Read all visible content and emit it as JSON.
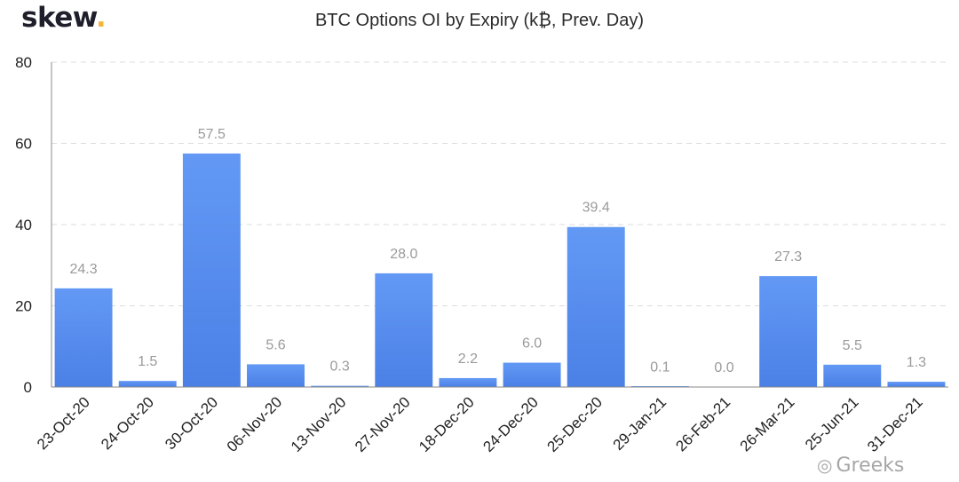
{
  "logo": {
    "text": "skew",
    "dot": "."
  },
  "watermark": {
    "icon": "wechat-icon",
    "text": "Greeks"
  },
  "colors": {
    "bar_top": "#6399f5",
    "bar_bottom": "#4b80e6",
    "grid": "#dcdcdc",
    "axis": "#888888",
    "data_label": "#9a9a9a",
    "logo_dot": "#f4b53a"
  },
  "chart_data": {
    "type": "bar",
    "title": "BTC Options OI by Expiry (k₿, Prev. Day)",
    "xlabel": "",
    "ylabel": "",
    "ylim": [
      0,
      80
    ],
    "yticks": [
      0,
      20,
      40,
      60,
      80
    ],
    "grid": true,
    "categories": [
      "23-Oct-20",
      "24-Oct-20",
      "30-Oct-20",
      "06-Nov-20",
      "13-Nov-20",
      "27-Nov-20",
      "18-Dec-20",
      "24-Dec-20",
      "25-Dec-20",
      "29-Jan-21",
      "26-Feb-21",
      "26-Mar-21",
      "25-Jun-21",
      "31-Dec-21"
    ],
    "values": [
      24.3,
      1.5,
      57.5,
      5.6,
      0.3,
      28.0,
      2.2,
      6.0,
      39.4,
      0.1,
      0.0,
      27.3,
      5.5,
      1.3
    ],
    "data_labels": [
      "24.3",
      "1.5",
      "57.5",
      "5.6",
      "0.3",
      "28.0",
      "2.2",
      "6.0",
      "39.4",
      "0.1",
      "0.0",
      "27.3",
      "5.5",
      "1.3"
    ]
  }
}
